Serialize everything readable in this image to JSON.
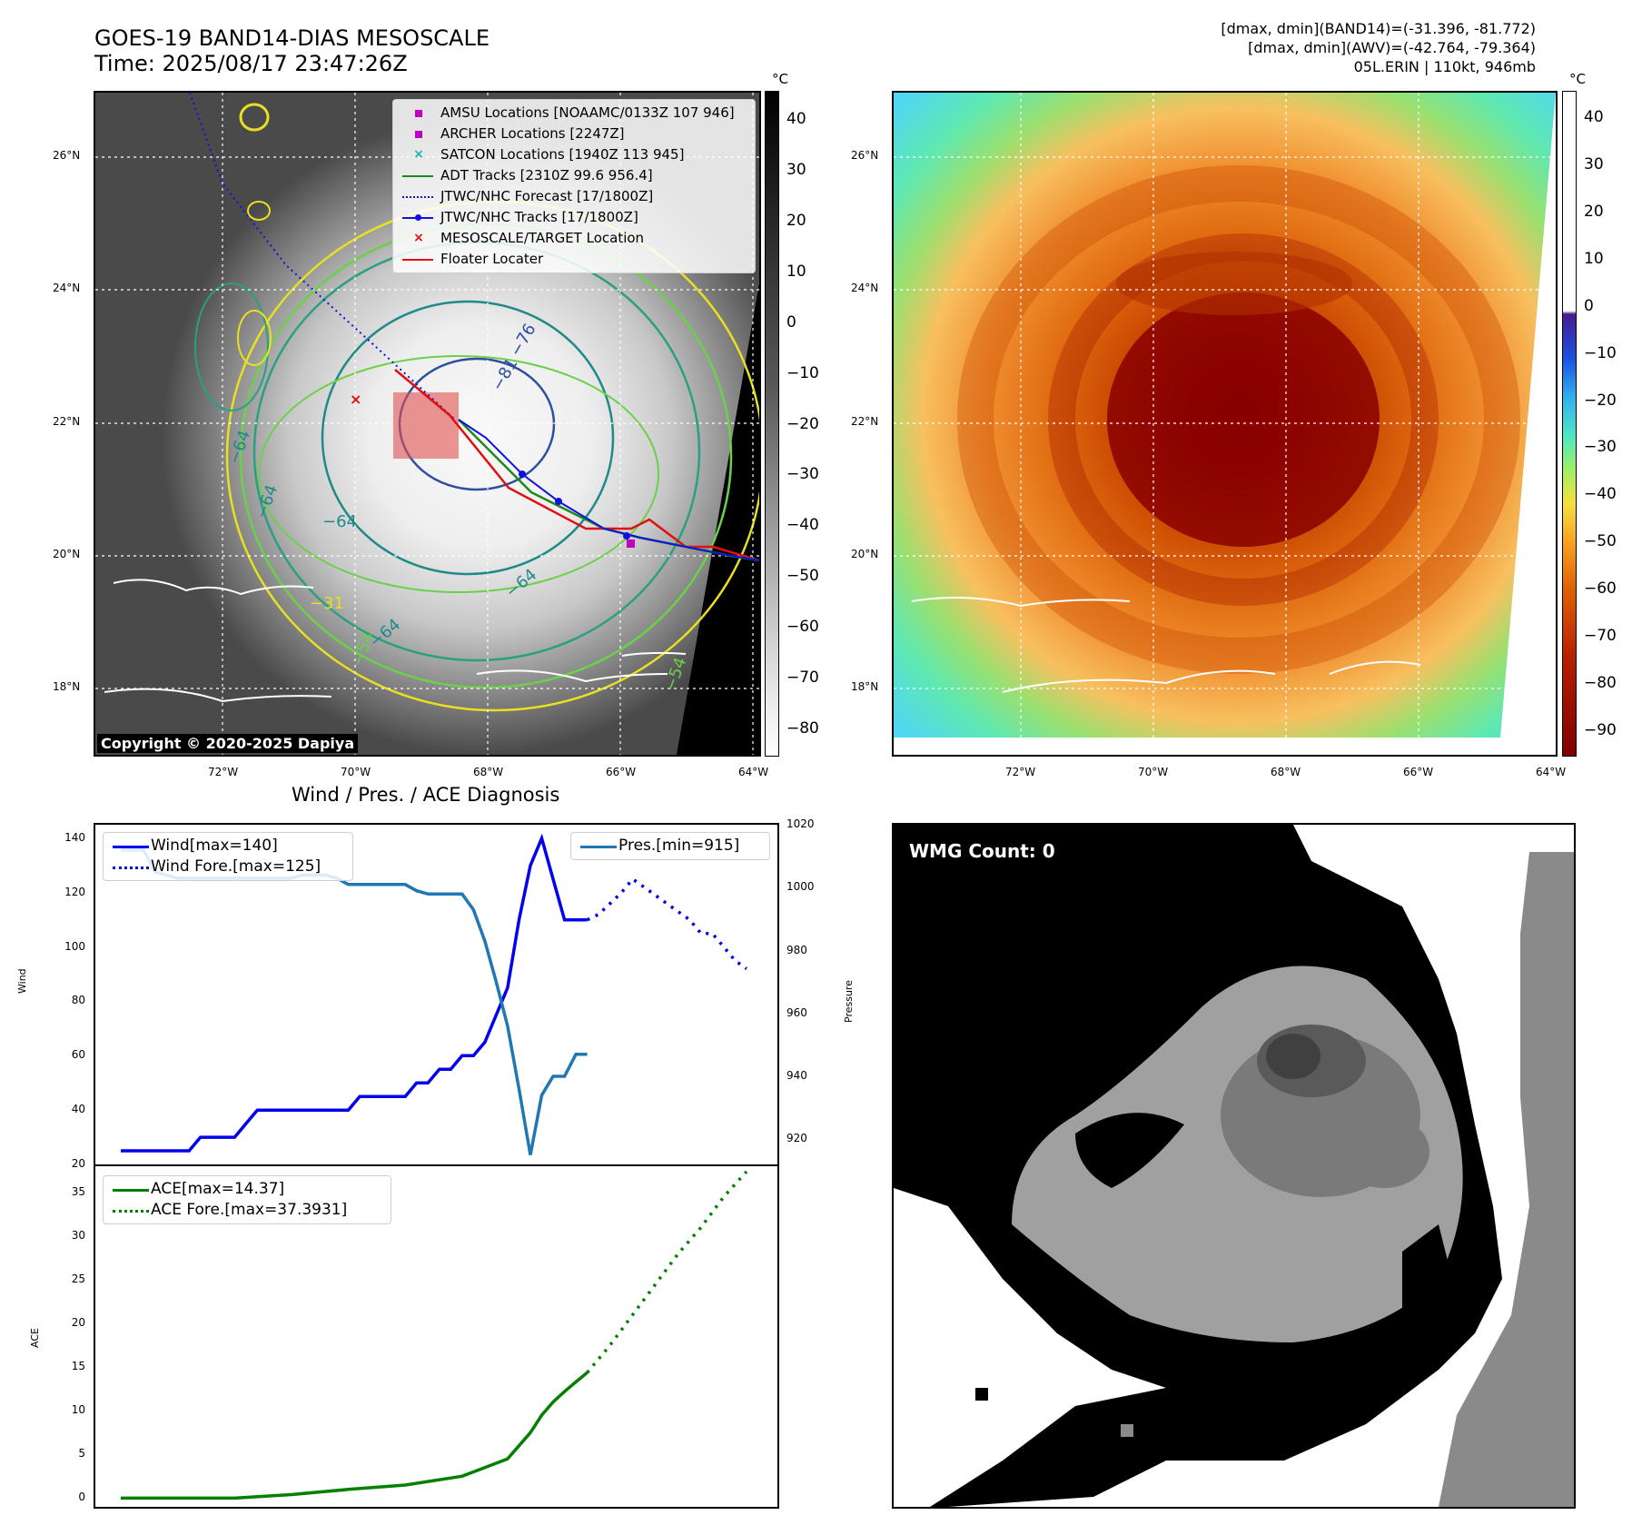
{
  "header": {
    "title_line1": "GOES-19 BAND14-DIAS MESOSCALE",
    "title_line2": "Time: 2025/08/17 23:47:26Z",
    "info_line1": "[dmax, dmin](BAND14)=(-31.396, -81.772)",
    "info_line2": "[dmax, dmin](AWV)=(-42.764, -79.364)",
    "info_line3": "05L.ERIN | 110kt, 946mb"
  },
  "map_left": {
    "colorbar_unit": "°C",
    "colorbar_ticks": [
      "40",
      "30",
      "20",
      "10",
      "0",
      "−10",
      "−20",
      "−30",
      "−40",
      "−50",
      "−60",
      "−70",
      "−80"
    ],
    "lat_labels": [
      "26°N",
      "24°N",
      "22°N",
      "20°N",
      "18°N"
    ],
    "lon_labels": [
      "72°W",
      "70°W",
      "68°W",
      "66°W",
      "64°W"
    ],
    "copyright": "Copyright © 2020-2025 Dapiya",
    "contour_labels": [
      "−76",
      "−81",
      "−64",
      "−64",
      "−64",
      "−54",
      "−54",
      "−31",
      "−64",
      "−64"
    ],
    "legend": [
      {
        "label": "AMSU Locations [NOAAMC/0133Z 107 946]",
        "symbol": "square",
        "color": "#c000c0"
      },
      {
        "label": "ARCHER Locations [2247Z]",
        "symbol": "square",
        "color": "#c000c0"
      },
      {
        "label": "SATCON Locations [1940Z 113 945]",
        "symbol": "x",
        "color": "#19b2b2"
      },
      {
        "label": "ADT Tracks [2310Z 99.6 956.4]",
        "symbol": "line",
        "color": "#1a8a1a"
      },
      {
        "label": "JTWC/NHC Forecast [17/1800Z]",
        "symbol": "dotted",
        "color": "#1010e0"
      },
      {
        "label": "JTWC/NHC Tracks [17/1800Z]",
        "symbol": "line-dot",
        "color": "#1010e0"
      },
      {
        "label": "MESOSCALE/TARGET Location",
        "symbol": "x",
        "color": "#e01010"
      },
      {
        "label": "Floater Locater",
        "symbol": "line",
        "color": "#e01010"
      }
    ]
  },
  "map_right": {
    "colorbar_unit": "°C",
    "colorbar_ticks": [
      "40",
      "30",
      "20",
      "10",
      "0",
      "−10",
      "−20",
      "−30",
      "−40",
      "−50",
      "−60",
      "−70",
      "−80",
      "−90"
    ],
    "lat_labels": [
      "26°N",
      "24°N",
      "22°N",
      "20°N",
      "18°N"
    ],
    "lon_labels": [
      "72°W",
      "70°W",
      "68°W",
      "66°W",
      "64°W"
    ]
  },
  "wmg": {
    "label": "WMG Count: 0"
  },
  "chart_data": [
    {
      "type": "line",
      "title": "Wind / Pres. / ACE Diagnosis",
      "ylabel": "Wind",
      "ylim": [
        20,
        145
      ],
      "yticks": [
        20,
        40,
        60,
        80,
        100,
        120,
        140
      ],
      "y2label": "Pressure",
      "y2lim": [
        912,
        1020
      ],
      "y2ticks": [
        920,
        940,
        960,
        980,
        1000,
        1020
      ],
      "series": [
        {
          "name": "Wind[max=140]",
          "color": "#0000ee",
          "style": "solid",
          "axis": "left",
          "x": [
            0,
            1,
            2,
            3,
            4,
            5,
            6,
            7,
            8,
            9,
            10,
            11,
            12,
            13,
            14,
            15,
            16,
            17,
            18,
            19,
            20,
            21,
            22,
            23,
            24,
            25,
            26,
            27,
            28,
            29,
            30,
            31,
            32,
            33,
            34,
            35,
            36,
            37,
            38,
            39,
            40,
            41
          ],
          "values": [
            25,
            25,
            25,
            25,
            25,
            25,
            25,
            30,
            30,
            30,
            30,
            35,
            40,
            40,
            40,
            40,
            40,
            40,
            40,
            40,
            40,
            45,
            45,
            45,
            45,
            45,
            50,
            50,
            55,
            55,
            60,
            60,
            65,
            75,
            85,
            110,
            130,
            140,
            125,
            110,
            110,
            110
          ]
        },
        {
          "name": "Wind Fore.[max=125]",
          "color": "#0000ee",
          "style": "dotted",
          "axis": "left",
          "x": [
            41,
            42,
            43,
            44,
            45,
            46,
            47,
            48,
            49,
            50,
            51,
            52,
            53,
            54,
            55
          ],
          "values": [
            110,
            112,
            116,
            120,
            125,
            122,
            119,
            116,
            113,
            110,
            105,
            105,
            100,
            95,
            92
          ]
        },
        {
          "name": "Pres.[min=915]",
          "color": "#1f77b4",
          "style": "solid",
          "axis": "right",
          "x": [
            0,
            1,
            2,
            3,
            4,
            5,
            6,
            7,
            8,
            9,
            10,
            11,
            12,
            13,
            14,
            15,
            16,
            17,
            18,
            19,
            20,
            21,
            22,
            23,
            24,
            25,
            26,
            27,
            28,
            29,
            30,
            31,
            32,
            33,
            34,
            35,
            36,
            37,
            38,
            39,
            40,
            41
          ],
          "values": [
            1012,
            1012,
            1012,
            1005,
            1004,
            1003,
            1003,
            1003,
            1003,
            1003,
            1003,
            1003,
            1003,
            1003,
            1003,
            1003,
            1004,
            1004,
            1004,
            1003,
            1001,
            1001,
            1001,
            1001,
            1001,
            1001,
            999,
            998,
            998,
            998,
            998,
            993,
            983,
            970,
            956,
            936,
            915,
            934,
            940,
            940,
            947,
            947
          ]
        }
      ]
    },
    {
      "type": "line",
      "title": "",
      "ylabel": "ACE",
      "ylim": [
        -1,
        38
      ],
      "yticks": [
        0,
        5,
        10,
        15,
        20,
        25,
        30,
        35
      ],
      "series": [
        {
          "name": "ACE[max=14.37]",
          "color": "#008000",
          "style": "solid",
          "x": [
            0,
            5,
            10,
            15,
            20,
            25,
            30,
            32,
            34,
            35,
            36,
            37,
            38,
            39,
            40,
            41
          ],
          "values": [
            0,
            0,
            0,
            0.4,
            1.0,
            1.5,
            2.5,
            3.5,
            4.5,
            6.0,
            7.5,
            9.5,
            11.0,
            12.2,
            13.3,
            14.37
          ]
        },
        {
          "name": "ACE Fore.[max=37.3931]",
          "color": "#008000",
          "style": "dotted",
          "x": [
            41,
            43,
            45,
            47,
            49,
            51,
            53,
            55
          ],
          "values": [
            14.37,
            17.5,
            21.0,
            24.5,
            28.0,
            31.0,
            34.5,
            37.39
          ]
        }
      ]
    }
  ]
}
